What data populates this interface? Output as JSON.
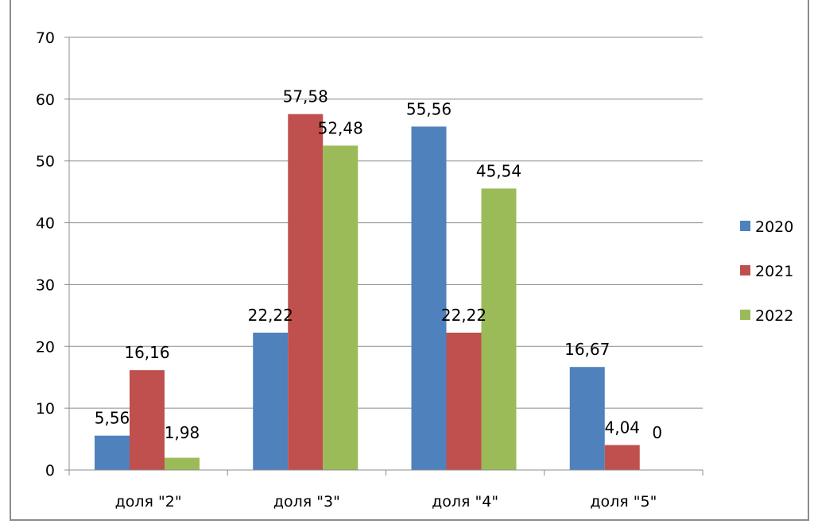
{
  "chart_data": {
    "type": "bar",
    "categories": [
      "доля \"2\"",
      "доля \"3\"",
      "доля \"4\"",
      "доля \"5\""
    ],
    "series": [
      {
        "name": "2020",
        "values": [
          5.56,
          22.22,
          55.56,
          16.67
        ],
        "labels": [
          "5,56",
          "22,22",
          "55,56",
          "16,67"
        ],
        "color": "#4f81bd"
      },
      {
        "name": "2021",
        "values": [
          16.16,
          57.58,
          22.22,
          4.04
        ],
        "labels": [
          "16,16",
          "57,58",
          "22,22",
          "4,04"
        ],
        "color": "#c0504d"
      },
      {
        "name": "2022",
        "values": [
          1.98,
          52.48,
          45.54,
          0
        ],
        "labels": [
          "1,98",
          "52,48",
          "45,54",
          "0"
        ],
        "color": "#9bbb59"
      }
    ],
    "ylim": [
      0,
      70
    ],
    "yticks": [
      0,
      10,
      20,
      30,
      40,
      50,
      60,
      70
    ],
    "grid": true,
    "legend": "right"
  }
}
